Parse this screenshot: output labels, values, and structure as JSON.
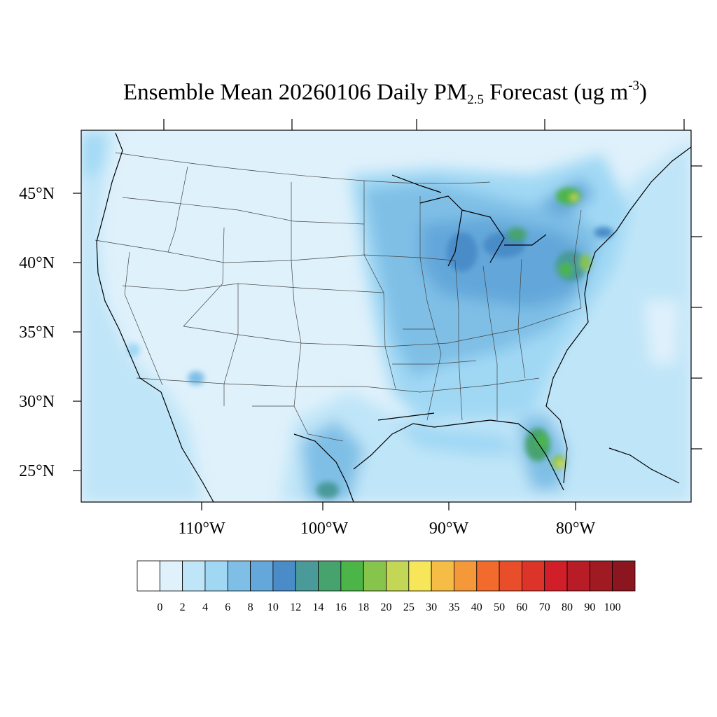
{
  "title": {
    "prefix": "Ensemble Mean 20260106 Daily PM",
    "subscript": "2.5",
    "middle": " Forecast (ug m",
    "superscript": "-3",
    "suffix": ")"
  },
  "map": {
    "lat_labels": [
      "45°N",
      "40°N",
      "35°N",
      "30°N",
      "25°N"
    ],
    "lon_labels": [
      "110°W",
      "100°W",
      "90°W",
      "80°W"
    ]
  },
  "colorbar": {
    "levels": [
      "0",
      "2",
      "4",
      "6",
      "8",
      "10",
      "12",
      "14",
      "16",
      "18",
      "20",
      "25",
      "30",
      "35",
      "40",
      "50",
      "60",
      "70",
      "80",
      "90",
      "100"
    ],
    "colors": [
      "#ffffff",
      "#dff1fb",
      "#bfe5f8",
      "#a0d8f4",
      "#7fbfe6",
      "#64a7da",
      "#4a8cc8",
      "#4a9a9a",
      "#46a36e",
      "#4cb548",
      "#86c44c",
      "#c3d655",
      "#f7e55a",
      "#f6bd46",
      "#f5983a",
      "#f26a2c",
      "#e84e2a",
      "#dc3428",
      "#d11f2a",
      "#b81c26",
      "#a01a22",
      "#8c1620"
    ]
  }
}
